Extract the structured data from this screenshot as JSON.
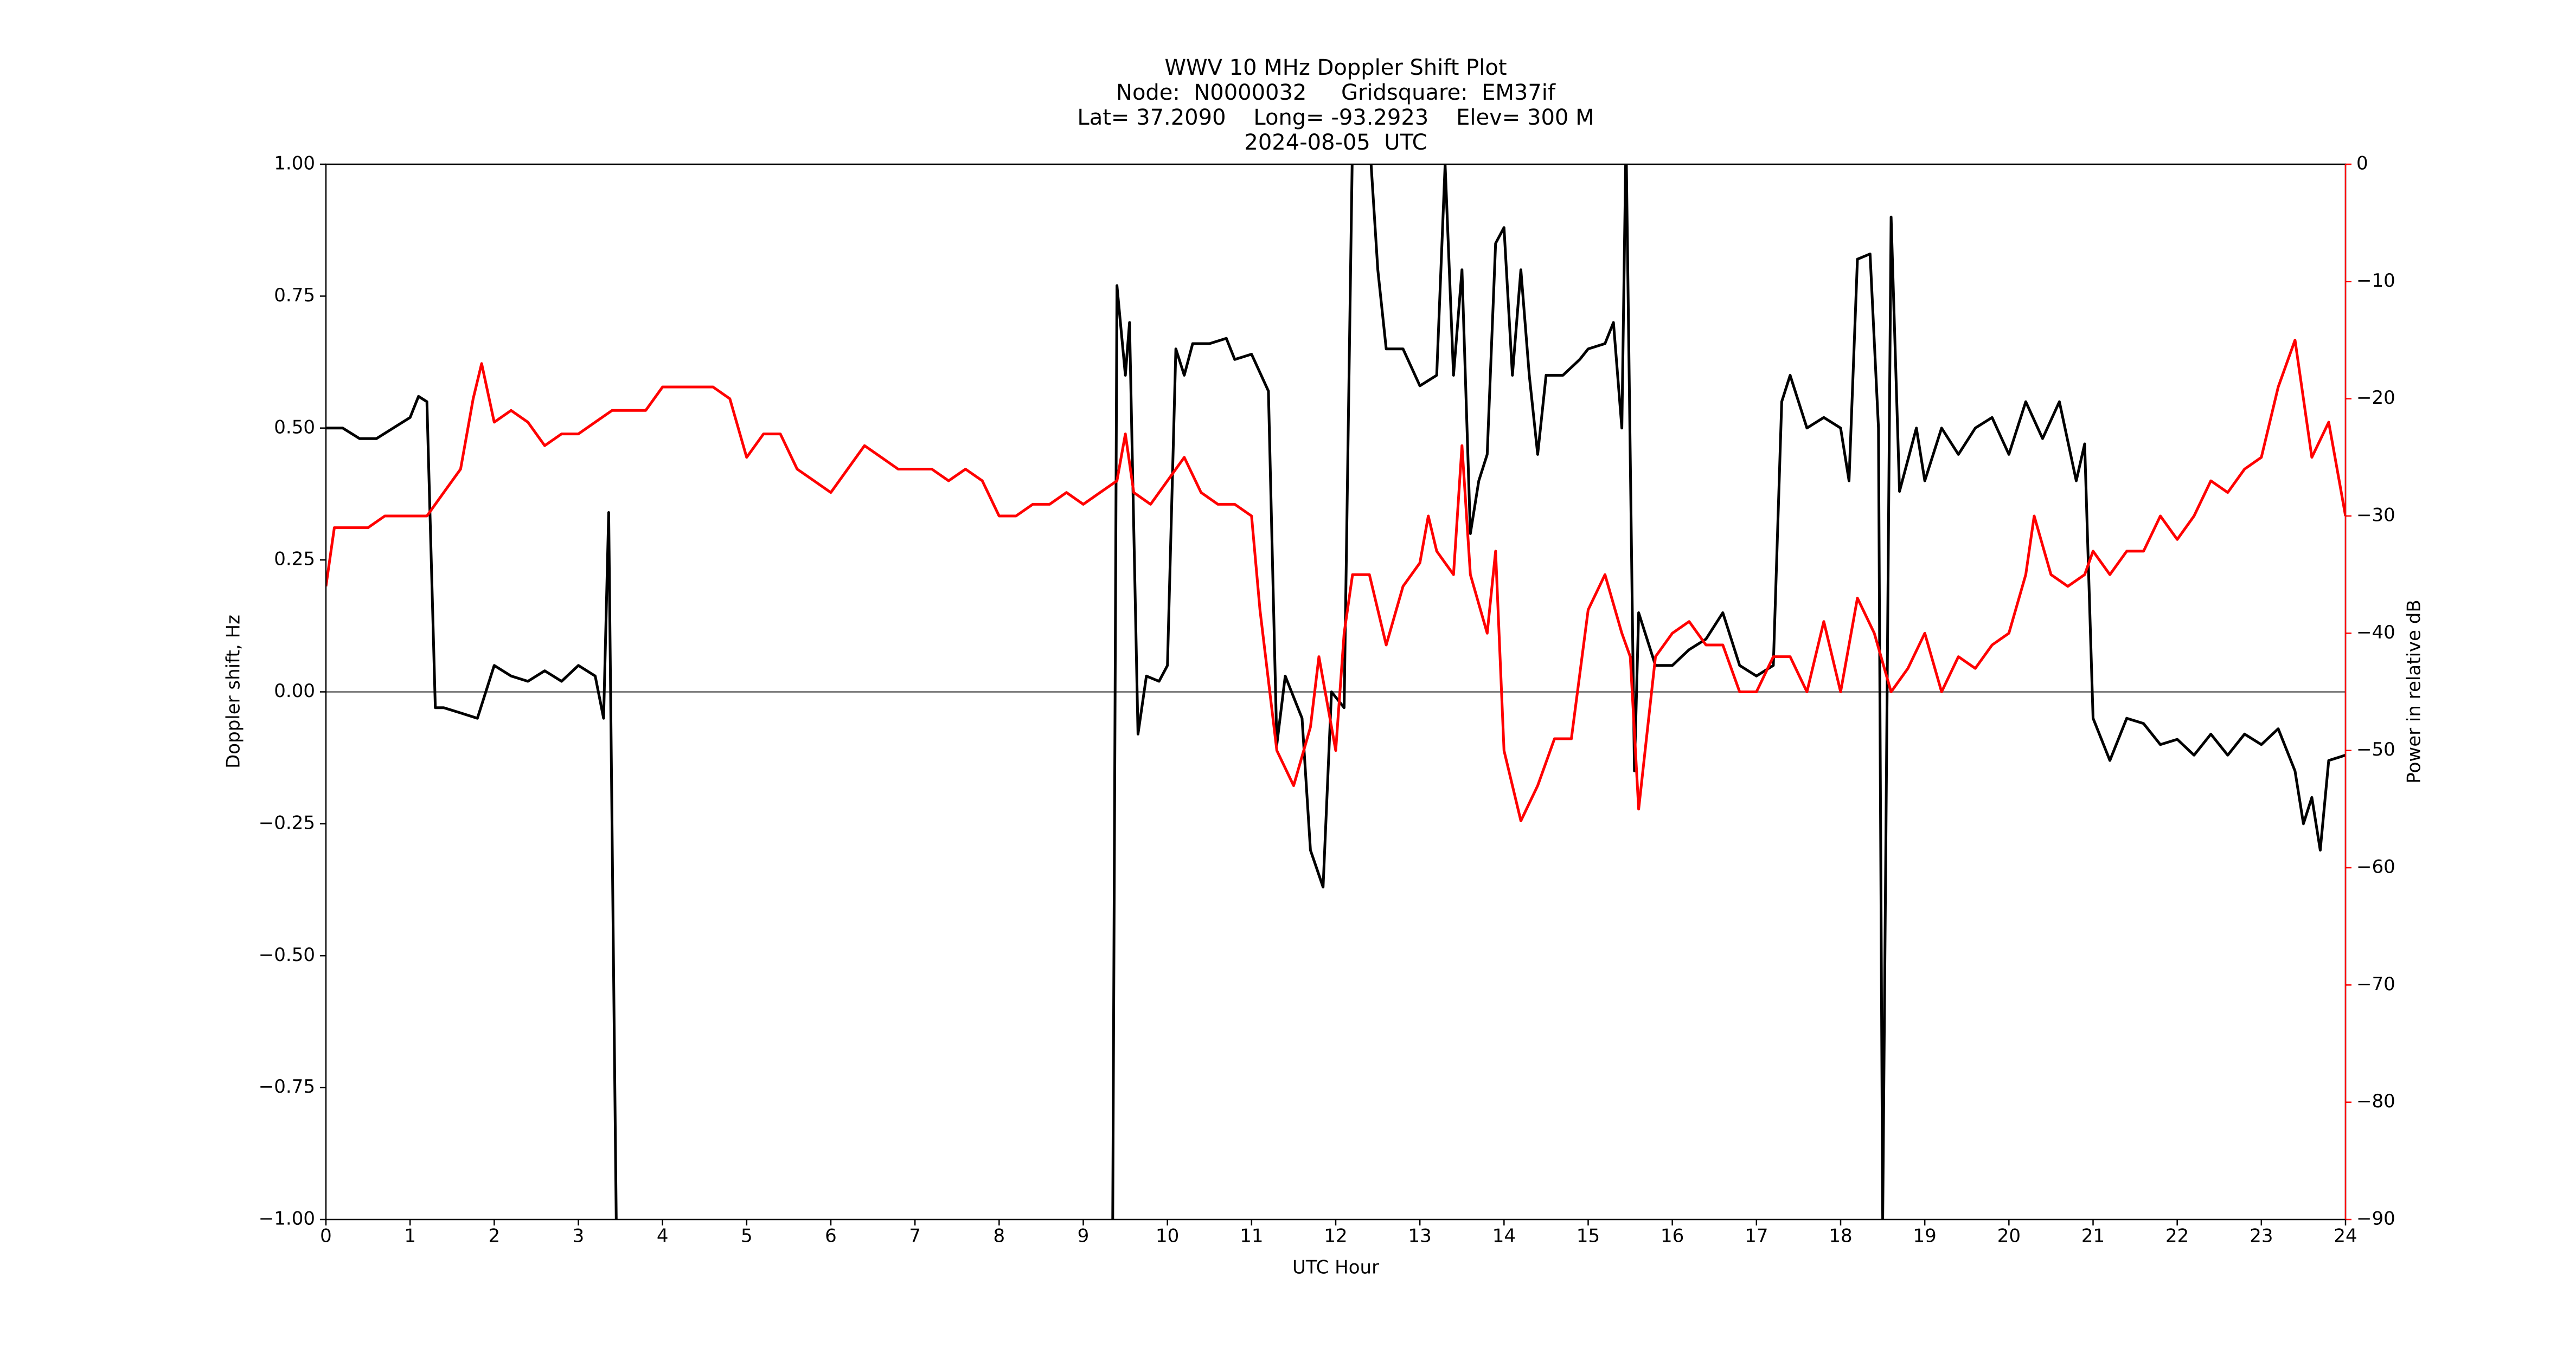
{
  "chart_data": {
    "type": "line",
    "title": [
      "WWV 10 MHz Doppler Shift Plot",
      "Node:  N0000032     Gridsquare:  EM37if",
      "Lat= 37.2090    Long= -93.2923    Elev= 300 M",
      "2024-08-05  UTC"
    ],
    "xlabel": "UTC Hour",
    "ylabel": "Doppler shift, Hz",
    "y2label": "Power in relative dB",
    "xlim": [
      0,
      24
    ],
    "xticks": [
      0,
      1,
      2,
      3,
      4,
      5,
      6,
      7,
      8,
      9,
      10,
      11,
      12,
      13,
      14,
      15,
      16,
      17,
      18,
      19,
      20,
      21,
      22,
      23,
      24
    ],
    "ylim": [
      -1,
      1
    ],
    "yticks": [
      {
        "value": -1,
        "label": "−1.00"
      },
      {
        "value": -0.75,
        "label": "−0.75"
      },
      {
        "value": -0.5,
        "label": "−0.50"
      },
      {
        "value": -0.25,
        "label": "−0.25"
      },
      {
        "value": 0,
        "label": "0.00"
      },
      {
        "value": 0.25,
        "label": "0.25"
      },
      {
        "value": 0.5,
        "label": "0.50"
      },
      {
        "value": 0.75,
        "label": "0.75"
      },
      {
        "value": 1,
        "label": "1.00"
      }
    ],
    "y2lim": [
      -90,
      0
    ],
    "y2ticks": [
      {
        "value": -90,
        "label": "−90"
      },
      {
        "value": -80,
        "label": "−80"
      },
      {
        "value": -70,
        "label": "−70"
      },
      {
        "value": -60,
        "label": "−60"
      },
      {
        "value": -50,
        "label": "−50"
      },
      {
        "value": -40,
        "label": "−40"
      },
      {
        "value": -30,
        "label": "−30"
      },
      {
        "value": -20,
        "label": "−20"
      },
      {
        "value": -10,
        "label": "−10"
      },
      0
    ],
    "y2color": "#ff0000",
    "hlines": [
      0
    ],
    "hline_color": "#808080",
    "series": [
      {
        "name": "Doppler shift",
        "color": "#000000",
        "axis": "y",
        "x": [
          0,
          0.2,
          0.4,
          0.6,
          0.8,
          1.0,
          1.1,
          1.2,
          1.3,
          1.4,
          1.6,
          1.8,
          1.9,
          2.0,
          2.2,
          2.4,
          2.6,
          2.8,
          3.0,
          3.2,
          3.3,
          3.36,
          3.45,
          6.0,
          9.35,
          9.4,
          9.5,
          9.55,
          9.65,
          9.75,
          9.9,
          10.0,
          10.1,
          10.2,
          10.3,
          10.5,
          10.7,
          10.8,
          11.0,
          11.2,
          11.3,
          11.4,
          11.6,
          11.7,
          11.85,
          11.95,
          12.1,
          12.2,
          12.4,
          12.5,
          12.6,
          12.8,
          13.0,
          13.2,
          13.3,
          13.4,
          13.5,
          13.6,
          13.7,
          13.8,
          13.9,
          14.0,
          14.1,
          14.2,
          14.3,
          14.4,
          14.5,
          14.7,
          14.9,
          15.0,
          15.2,
          15.3,
          15.4,
          15.45,
          15.55,
          15.6,
          15.8,
          16.0,
          16.2,
          16.4,
          16.6,
          16.8,
          17.0,
          17.2,
          17.3,
          17.4,
          17.6,
          17.8,
          18.0,
          18.1,
          18.2,
          18.35,
          18.45,
          18.5,
          18.6,
          18.7,
          18.9,
          19.0,
          19.2,
          19.4,
          19.6,
          19.8,
          20.0,
          20.2,
          20.4,
          20.6,
          20.8,
          20.9,
          21.0,
          21.2,
          21.4,
          21.6,
          21.8,
          22.0,
          22.2,
          22.4,
          22.6,
          22.8,
          23.0,
          23.2,
          23.4,
          23.5,
          23.6,
          23.7,
          23.8,
          24.0
        ],
        "values": [
          0.5,
          0.5,
          0.48,
          0.48,
          0.5,
          0.52,
          0.56,
          0.55,
          -0.03,
          -0.03,
          -0.04,
          -0.05,
          0.0,
          0.05,
          0.03,
          0.02,
          0.04,
          0.02,
          0.05,
          0.03,
          -0.05,
          0.34,
          -1.0,
          null,
          -1.0,
          0.77,
          0.6,
          0.7,
          -0.08,
          0.03,
          0.02,
          0.05,
          0.65,
          0.6,
          0.66,
          0.66,
          0.67,
          0.63,
          0.64,
          0.57,
          -0.1,
          0.03,
          -0.05,
          -0.3,
          -0.37,
          0.0,
          -0.03,
          1.05,
          1.05,
          0.8,
          0.65,
          0.65,
          0.58,
          0.6,
          1.0,
          0.6,
          0.8,
          0.3,
          0.4,
          0.45,
          0.85,
          0.88,
          0.6,
          0.8,
          0.6,
          0.45,
          0.6,
          0.6,
          0.63,
          0.65,
          0.66,
          0.7,
          0.5,
          1.05,
          -0.15,
          0.15,
          0.05,
          0.05,
          0.08,
          0.1,
          0.15,
          0.05,
          0.03,
          0.05,
          0.55,
          0.6,
          0.5,
          0.52,
          0.5,
          0.4,
          0.82,
          0.83,
          0.5,
          -1.0,
          0.9,
          0.38,
          0.5,
          0.4,
          0.5,
          0.45,
          0.5,
          0.52,
          0.45,
          0.55,
          0.48,
          0.55,
          0.4,
          0.47,
          -0.05,
          -0.13,
          -0.05,
          -0.06,
          -0.1,
          -0.09,
          -0.12,
          -0.08,
          -0.12,
          -0.08,
          -0.1,
          -0.07,
          -0.15,
          -0.25,
          -0.2,
          -0.3,
          -0.13,
          -0.12
        ]
      },
      {
        "name": "Power",
        "color": "#ff0000",
        "axis": "y2",
        "x": [
          0,
          0.1,
          0.3,
          0.5,
          0.7,
          0.9,
          1.0,
          1.2,
          1.4,
          1.6,
          1.75,
          1.85,
          2.0,
          2.2,
          2.4,
          2.6,
          2.8,
          3.0,
          3.2,
          3.4,
          3.6,
          3.8,
          4.0,
          4.2,
          4.4,
          4.6,
          4.8,
          5.0,
          5.2,
          5.4,
          5.6,
          5.8,
          6.0,
          6.2,
          6.4,
          6.6,
          6.8,
          7.0,
          7.2,
          7.4,
          7.6,
          7.8,
          8.0,
          8.2,
          8.4,
          8.6,
          8.8,
          9.0,
          9.2,
          9.4,
          9.5,
          9.6,
          9.8,
          10.0,
          10.2,
          10.4,
          10.6,
          10.8,
          11.0,
          11.1,
          11.3,
          11.5,
          11.7,
          11.8,
          12.0,
          12.1,
          12.2,
          12.4,
          12.6,
          12.8,
          13.0,
          13.1,
          13.2,
          13.4,
          13.5,
          13.6,
          13.8,
          13.9,
          14.0,
          14.2,
          14.4,
          14.6,
          14.8,
          15.0,
          15.2,
          15.4,
          15.5,
          15.6,
          15.8,
          16.0,
          16.2,
          16.4,
          16.6,
          16.8,
          17.0,
          17.2,
          17.4,
          17.6,
          17.8,
          18.0,
          18.2,
          18.4,
          18.6,
          18.8,
          19.0,
          19.2,
          19.4,
          19.6,
          19.8,
          20.0,
          20.2,
          20.3,
          20.5,
          20.7,
          20.9,
          21.0,
          21.2,
          21.4,
          21.6,
          21.8,
          22.0,
          22.2,
          22.4,
          22.6,
          22.8,
          23.0,
          23.2,
          23.4,
          23.6,
          23.8,
          24.0
        ],
        "values": [
          -36,
          -31,
          -31,
          -31,
          -30,
          -30,
          -30,
          -30,
          -28,
          -26,
          -20,
          -17,
          -22,
          -21,
          -22,
          -24,
          -23,
          -23,
          -22,
          -21,
          -21,
          -21,
          -19,
          -19,
          -19,
          -19,
          -20,
          -25,
          -23,
          -23,
          -26,
          -27,
          -28,
          -26,
          -24,
          -25,
          -26,
          -26,
          -26,
          -27,
          -26,
          -27,
          -30,
          -30,
          -29,
          -29,
          -28,
          -29,
          -28,
          -27,
          -23,
          -28,
          -29,
          -27,
          -25,
          -28,
          -29,
          -29,
          -30,
          -38,
          -50,
          -53,
          -48,
          -42,
          -50,
          -40,
          -35,
          -35,
          -41,
          -36,
          -34,
          -30,
          -33,
          -35,
          -24,
          -35,
          -40,
          -33,
          -50,
          -56,
          -53,
          -49,
          -49,
          -38,
          -35,
          -40,
          -42,
          -55,
          -42,
          -40,
          -39,
          -41,
          -41,
          -45,
          -45,
          -42,
          -42,
          -45,
          -39,
          -45,
          -37,
          -40,
          -45,
          -43,
          -40,
          -45,
          -42,
          -43,
          -41,
          -40,
          -35,
          -30,
          -35,
          -36,
          -35,
          -33,
          -35,
          -33,
          -33,
          -30,
          -32,
          -30,
          -27,
          -28,
          -26,
          -25,
          -19,
          -15,
          -25,
          -22,
          -30
        ]
      }
    ]
  }
}
